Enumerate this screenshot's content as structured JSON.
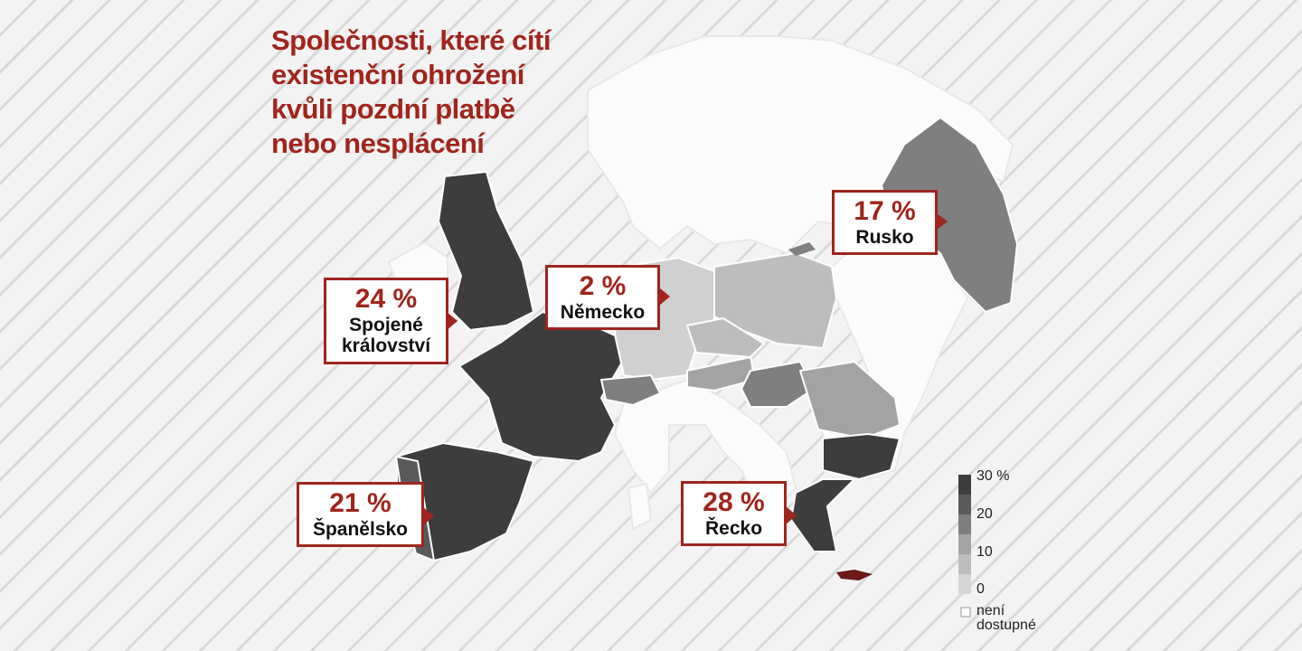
{
  "title_lines": [
    "Společnosti, které cítí",
    "existenční ohrožení",
    "kvůli pozdní platbě",
    "nebo nesplácení"
  ],
  "callouts": {
    "uk": {
      "value": "24 %",
      "name_lines": [
        "Spojené",
        "království"
      ]
    },
    "germany": {
      "value": "2 %",
      "name": "Německo"
    },
    "russia": {
      "value": "17 %",
      "name": "Rusko"
    },
    "spain": {
      "value": "21 %",
      "name": "Španělsko"
    },
    "greece": {
      "value": "28 %",
      "name": "Řecko"
    }
  },
  "legend": {
    "labels": [
      "30 %",
      "20",
      "10",
      "0"
    ],
    "na_lines": [
      "není",
      "dostupné"
    ]
  },
  "colors": {
    "accent": "#a0251c",
    "scale_30": "#3d3d3d",
    "scale_25": "#5a5a5a",
    "scale_20": "#7f7f7f",
    "scale_15": "#a3a3a3",
    "scale_10": "#bdbdbd",
    "scale_5": "#d0d0d0",
    "scale_0": "#e0e0e0",
    "not_available": "#fbfbfb"
  }
}
